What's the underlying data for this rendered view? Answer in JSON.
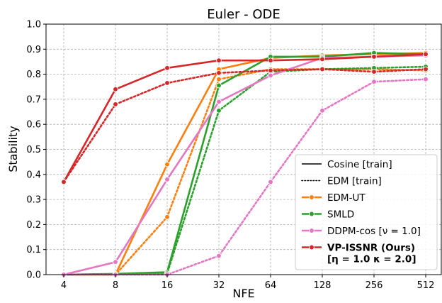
{
  "chart_data": {
    "type": "line",
    "title": "Euler - ODE",
    "xlabel": "NFE",
    "ylabel": "Stability",
    "x_scale": "log2",
    "categories": [
      "4",
      "8",
      "16",
      "32",
      "64",
      "128",
      "256",
      "512"
    ],
    "ylim": [
      0.0,
      1.0
    ],
    "yticks": [
      "0.0",
      "0.1",
      "0.2",
      "0.3",
      "0.4",
      "0.5",
      "0.6",
      "0.7",
      "0.8",
      "0.9",
      "1.0"
    ],
    "grid": true,
    "legend_position": "lower-right",
    "colors": {
      "EDM-UT": "#ff7f0e",
      "SMLD": "#2ca02c",
      "DDPM-cos": "#e377c2",
      "VP-ISSNR": "#d62728"
    },
    "legend": [
      {
        "label": "Cosine [train]",
        "style": "solid",
        "color": "#000000",
        "marker": false,
        "bold": false
      },
      {
        "label": "EDM [train]",
        "style": "dotted",
        "color": "#000000",
        "marker": false,
        "bold": false
      },
      {
        "label": "EDM-UT",
        "style": "solid",
        "color": "#ff7f0e",
        "marker": true,
        "bold": false
      },
      {
        "label": "SMLD",
        "style": "solid",
        "color": "#2ca02c",
        "marker": true,
        "bold": false
      },
      {
        "label": "DDPM-cos [ν = 1.0]",
        "style": "solid",
        "color": "#e377c2",
        "marker": true,
        "bold": false
      },
      {
        "label": "VP-ISSNR (Ours)",
        "label2": "[η = 1.0  κ = 2.0]",
        "style": "solid",
        "color": "#d62728",
        "marker": true,
        "bold": true
      }
    ],
    "series": [
      {
        "method": "EDM-UT",
        "schedule": "Cosine",
        "color": "#ff7f0e",
        "style": "solid",
        "values": [
          0.0,
          0.0,
          0.44,
          0.82,
          0.865,
          0.875,
          0.88,
          0.885
        ]
      },
      {
        "method": "EDM-UT",
        "schedule": "EDM",
        "color": "#ff7f0e",
        "style": "dotted",
        "values": [
          0.0,
          0.0,
          0.23,
          0.78,
          0.82,
          0.82,
          0.82,
          0.815
        ]
      },
      {
        "method": "SMLD",
        "schedule": "Cosine",
        "color": "#2ca02c",
        "style": "solid",
        "values": [
          0.0,
          0.003,
          0.01,
          0.755,
          0.87,
          0.87,
          0.885,
          0.88
        ]
      },
      {
        "method": "SMLD",
        "schedule": "EDM",
        "color": "#2ca02c",
        "style": "dotted",
        "values": [
          0.0,
          0.002,
          0.005,
          0.655,
          0.81,
          0.82,
          0.825,
          0.83
        ]
      },
      {
        "method": "DDPM-cos",
        "schedule": "Cosine",
        "color": "#e377c2",
        "style": "solid",
        "values": [
          0.0,
          0.05,
          0.38,
          0.69,
          0.795,
          0.865,
          0.87,
          0.875
        ]
      },
      {
        "method": "DDPM-cos",
        "schedule": "EDM",
        "color": "#e377c2",
        "style": "dotted",
        "values": [
          0.0,
          0.0,
          0.0,
          0.075,
          0.37,
          0.655,
          0.77,
          0.78
        ]
      },
      {
        "method": "VP-ISSNR",
        "schedule": "Cosine",
        "color": "#d62728",
        "style": "solid",
        "values": [
          0.37,
          0.74,
          0.825,
          0.855,
          0.855,
          0.86,
          0.87,
          0.88
        ]
      },
      {
        "method": "VP-ISSNR",
        "schedule": "EDM",
        "color": "#d62728",
        "style": "dotted",
        "values": [
          0.37,
          0.68,
          0.765,
          0.805,
          0.815,
          0.82,
          0.81,
          0.82
        ]
      }
    ]
  }
}
